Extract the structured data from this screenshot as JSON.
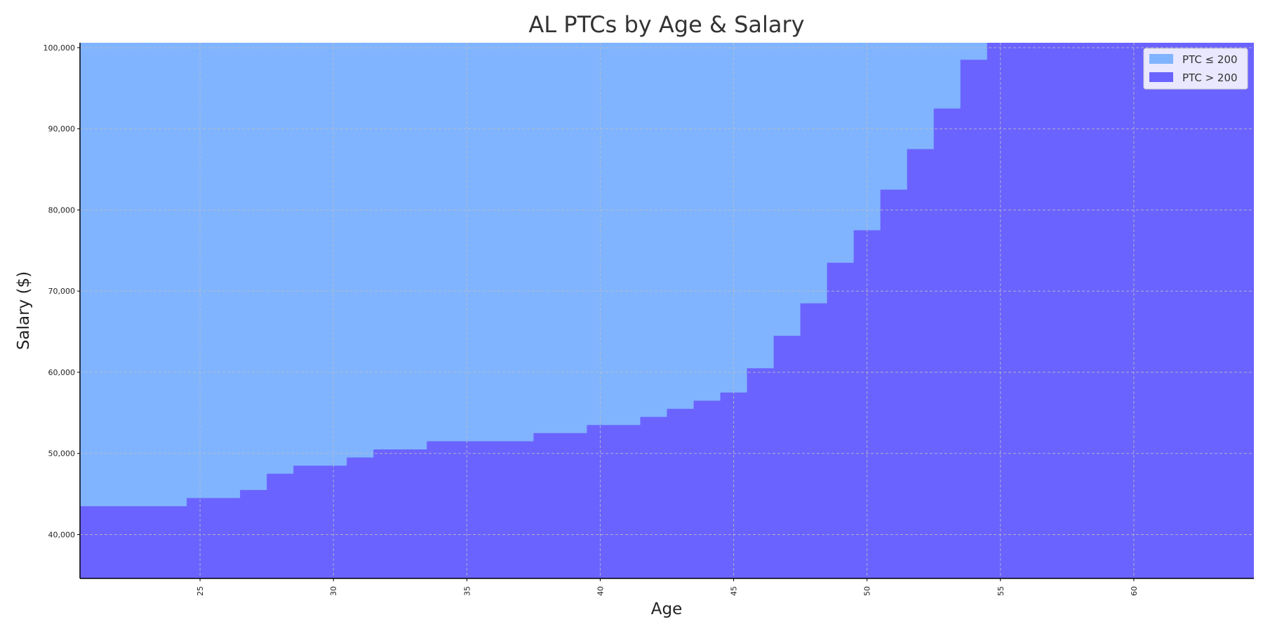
{
  "chart_data": {
    "type": "area",
    "title": "AL PTCs by Age & Salary",
    "xlabel": "Age",
    "ylabel": "Salary ($)",
    "xlim": [
      20.5,
      64.5
    ],
    "ylim": [
      34600,
      100600
    ],
    "x_ticks": [
      25,
      30,
      35,
      40,
      45,
      50,
      55,
      60
    ],
    "y_ticks": [
      40000,
      50000,
      60000,
      70000,
      80000,
      90000,
      100000
    ],
    "y_tick_labels": [
      "40,000",
      "50,000",
      "60,000",
      "70,000",
      "80,000",
      "90,000",
      "100,000"
    ],
    "grid": true,
    "legend_position": "top-right",
    "colors": {
      "ptc_le_200": "#80b4ff",
      "ptc_gt_200": "#6b63ff",
      "grid": "#bfbfbf",
      "axis": "#000000"
    },
    "series": [
      {
        "name": "PTC ≤ 200",
        "color": "#80b4ff",
        "region": "above threshold"
      },
      {
        "name": "PTC > 200",
        "color": "#6b63ff",
        "region": "below threshold"
      }
    ],
    "threshold": {
      "description": "Salary boundary between regions, per age (step)",
      "ages": [
        21,
        22,
        23,
        24,
        25,
        26,
        27,
        28,
        29,
        30,
        31,
        32,
        33,
        34,
        35,
        36,
        37,
        38,
        39,
        40,
        41,
        42,
        43,
        44,
        45,
        46,
        47,
        48,
        49,
        50,
        51,
        52,
        53,
        54,
        55,
        56,
        57,
        58,
        59,
        60,
        61,
        62,
        63,
        64
      ],
      "salary": [
        43500,
        43500,
        43500,
        43500,
        44500,
        44500,
        45500,
        47500,
        48500,
        48500,
        49500,
        50500,
        50500,
        51500,
        51500,
        51500,
        51500,
        52500,
        52500,
        53500,
        53500,
        54500,
        55500,
        56500,
        57500,
        60500,
        64500,
        68500,
        73500,
        77500,
        82500,
        87500,
        92500,
        98500,
        100600,
        100600,
        100600,
        100600,
        100600,
        100600,
        100600,
        100600,
        100600,
        100600
      ]
    }
  }
}
